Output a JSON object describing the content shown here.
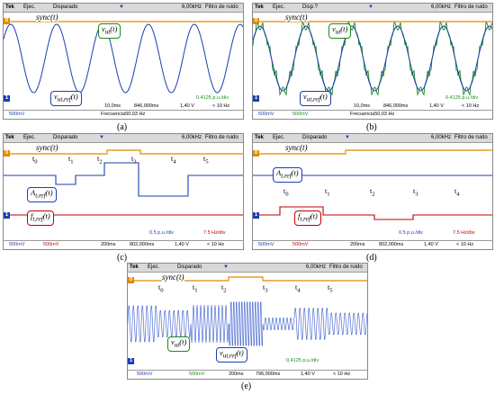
{
  "panels": [
    {
      "id": "a",
      "header": {
        "mode": "Tek",
        "status1": "Ejec.",
        "status2": "Disparado",
        "freq": "6,00kHz",
        "filter": "Filtro de ruido"
      },
      "sync_label": "sync(t)",
      "label_top": "v_ut(t)",
      "label_bottom": "v_ut,ref(t)",
      "scale": "0.4125 p.u./div",
      "footer": {
        "ch1": "500mV",
        "timebase": "10,0ms",
        "offset": "846,000ms",
        "trig": "1,40 V",
        "freq_count": "< 10 Hz",
        "freq_label": "Frecuencia50,03 Hz"
      },
      "caption": "(a)"
    },
    {
      "id": "b",
      "header": {
        "mode": "Tek",
        "status1": "Ejec.",
        "status2": "Disp.?",
        "freq": "6,00kHz",
        "filter": "Filtro de ruido"
      },
      "sync_label": "sync(t)",
      "label_top": "v_ut(t)",
      "label_bottom": "v_ut,ref(t)",
      "scale": "0.4125 p.u./div",
      "footer": {
        "ch1": "500mV",
        "ch3": "500mV",
        "timebase": "10,0ms",
        "offset": "846,000ms",
        "trig": "1,40 V",
        "freq_count": "< 10 Hz",
        "freq_label": "Frecuencia50,03 Hz"
      },
      "caption": "(b)"
    },
    {
      "id": "c",
      "header": {
        "mode": "Tek",
        "status1": "Ejec.",
        "status2": "Disparado",
        "freq": "6,00kHz",
        "filter": "Filtro de ruido"
      },
      "sync_label": "sync(t)",
      "label_top": "A_t,ref(t)",
      "label_bottom": "f_t,ref(t)",
      "ticks": [
        "t0",
        "t1",
        "t2",
        "t3",
        "t4",
        "t5"
      ],
      "scale1": "0.5 p.u./div",
      "scale2": "7.5 Hz/div",
      "footer": {
        "ch1": "500mV",
        "ch2": "500mV",
        "timebase": "200ms",
        "offset": "802,000ms",
        "trig": "1,40 V",
        "freq_count": "< 10 Hz"
      },
      "caption": "(c)"
    },
    {
      "id": "d",
      "header": {
        "mode": "Tek",
        "status1": "Ejec.",
        "status2": "Disparado",
        "freq": "6,00kHz",
        "filter": "Filtro de ruido"
      },
      "sync_label": "sync(t)",
      "label_top": "A_t,ref(t)",
      "label_bottom": "f_t,ref(t)",
      "ticks": [
        "t0",
        "t1",
        "t2",
        "t3",
        "t4"
      ],
      "scale1": "0.5 p.u./div",
      "scale2": "7.5 Hz/div",
      "footer": {
        "ch1": "500mV",
        "ch2": "500mV",
        "timebase": "200ms",
        "offset": "802,000ms",
        "trig": "1,40 V",
        "freq_count": "< 10 Hz"
      },
      "caption": "(d)"
    },
    {
      "id": "e",
      "header": {
        "mode": "Tek",
        "status1": "Ejec.",
        "status2": "Disparado",
        "freq": "6,00kHz",
        "filter": "Filtro de ruido"
      },
      "sync_label": "sync(t)",
      "label_top": "v_ut(t)",
      "label_bottom": "v_ut,ref(t)",
      "ticks": [
        "t0",
        "t1",
        "t2",
        "t3",
        "t4",
        "t5"
      ],
      "scale": "0.4125 p.u./div",
      "footer": {
        "ch1": "500mV",
        "ch3": "500mV",
        "timebase": "200ms",
        "offset": "796,000ms",
        "trig": "1,40 V",
        "freq_count": "< 10 Hz"
      },
      "caption": "(e)"
    }
  ],
  "colors": {
    "ch1": "#1a3fb0",
    "ch2": "#c00000",
    "ch3": "#1a8a1a",
    "sync": "#e08a00"
  }
}
